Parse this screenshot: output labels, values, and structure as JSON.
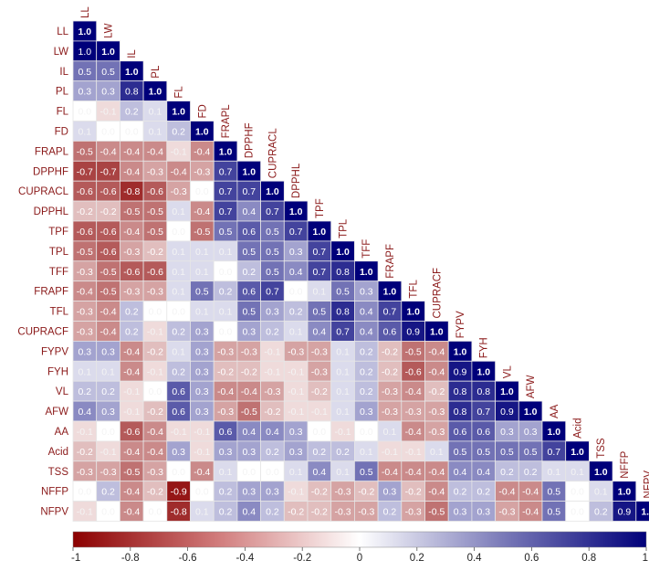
{
  "chart_data": {
    "type": "heatmap",
    "subtype": "lower-triangular correlation matrix",
    "variables": [
      "LL",
      "LW",
      "IL",
      "PL",
      "FL",
      "FD",
      "FRAPL",
      "DPPHF",
      "CUPRACL",
      "DPPHL",
      "TPF",
      "TPL",
      "TFF",
      "FRAPF",
      "TFL",
      "CUPRACF",
      "FYPV",
      "FYH",
      "VL",
      "AFW",
      "AA",
      "Acid",
      "TSS",
      "NFFP",
      "NFPV"
    ],
    "matrix": [
      [
        1.0
      ],
      [
        1.0,
        1.0
      ],
      [
        0.5,
        0.5,
        1.0
      ],
      [
        0.3,
        0.3,
        0.8,
        1.0
      ],
      [
        0.0,
        -0.1,
        0.2,
        0.1,
        1.0
      ],
      [
        0.1,
        0.0,
        0.0,
        0.1,
        0.2,
        1.0
      ],
      [
        -0.5,
        -0.4,
        -0.4,
        -0.4,
        -0.1,
        -0.4,
        1.0
      ],
      [
        -0.7,
        -0.7,
        -0.4,
        -0.3,
        -0.4,
        -0.3,
        0.7,
        1.0
      ],
      [
        -0.6,
        -0.6,
        -0.8,
        -0.6,
        -0.3,
        0.0,
        0.7,
        0.7,
        1.0
      ],
      [
        -0.2,
        -0.2,
        -0.5,
        -0.5,
        0.1,
        -0.4,
        0.7,
        0.4,
        0.7,
        1.0
      ],
      [
        -0.6,
        -0.6,
        -0.4,
        -0.5,
        0.0,
        -0.5,
        0.5,
        0.6,
        0.5,
        0.7,
        1.0
      ],
      [
        -0.5,
        -0.6,
        -0.3,
        -0.2,
        0.1,
        0.1,
        0.1,
        0.5,
        0.5,
        0.3,
        0.7,
        1.0
      ],
      [
        -0.3,
        -0.5,
        -0.6,
        -0.6,
        0.1,
        0.1,
        0.0,
        0.2,
        0.5,
        0.4,
        0.7,
        0.8,
        1.0
      ],
      [
        -0.4,
        -0.5,
        -0.3,
        -0.3,
        0.1,
        0.5,
        0.2,
        0.6,
        0.7,
        0.0,
        0.1,
        0.5,
        0.3,
        1.0
      ],
      [
        -0.3,
        -0.4,
        0.2,
        0.0,
        0.0,
        0.1,
        0.1,
        0.5,
        0.3,
        0.2,
        0.5,
        0.8,
        0.4,
        0.7,
        1.0
      ],
      [
        -0.3,
        -0.4,
        0.2,
        -0.1,
        0.2,
        0.3,
        0.0,
        0.3,
        0.2,
        0.1,
        0.4,
        0.7,
        0.4,
        0.6,
        0.9,
        1.0
      ],
      [
        0.3,
        0.3,
        -0.4,
        -0.2,
        0.1,
        0.3,
        -0.3,
        -0.3,
        -0.1,
        -0.3,
        -0.3,
        0.1,
        0.2,
        -0.2,
        -0.5,
        -0.4,
        1.0
      ],
      [
        0.1,
        0.1,
        -0.4,
        -0.1,
        0.2,
        0.3,
        -0.2,
        -0.2,
        -0.1,
        -0.1,
        -0.3,
        0.1,
        0.2,
        -0.2,
        -0.6,
        -0.4,
        0.9,
        1.0
      ],
      [
        0.2,
        0.2,
        -0.1,
        0.0,
        0.6,
        0.3,
        -0.4,
        -0.4,
        -0.3,
        -0.1,
        -0.2,
        0.1,
        0.2,
        -0.3,
        -0.4,
        -0.2,
        0.8,
        0.8,
        1.0
      ],
      [
        0.4,
        0.3,
        -0.1,
        -0.2,
        0.6,
        0.3,
        -0.3,
        -0.5,
        -0.2,
        -0.1,
        -0.1,
        0.1,
        0.3,
        -0.3,
        -0.3,
        -0.3,
        0.8,
        0.7,
        0.9,
        1.0
      ],
      [
        -0.1,
        0.0,
        -0.6,
        -0.4,
        -0.1,
        -0.1,
        0.6,
        0.4,
        0.4,
        0.3,
        0.0,
        -0.1,
        0.0,
        0.1,
        -0.4,
        -0.3,
        0.6,
        0.6,
        0.3,
        0.3,
        1.0
      ],
      [
        -0.2,
        -0.1,
        -0.4,
        -0.4,
        0.3,
        -0.1,
        0.3,
        0.3,
        0.2,
        0.3,
        0.2,
        0.2,
        0.1,
        -0.1,
        -0.1,
        0.1,
        0.5,
        0.5,
        0.5,
        0.5,
        0.7,
        1.0
      ],
      [
        -0.3,
        -0.3,
        -0.5,
        -0.3,
        0.0,
        -0.4,
        0.1,
        0.0,
        0.0,
        0.1,
        0.4,
        0.1,
        0.5,
        -0.4,
        -0.4,
        -0.4,
        0.4,
        0.4,
        0.2,
        0.2,
        0.1,
        0.1,
        1.0
      ],
      [
        0.0,
        0.2,
        -0.4,
        -0.2,
        -0.9,
        0.0,
        0.2,
        0.3,
        0.3,
        -0.1,
        -0.2,
        -0.3,
        -0.2,
        0.3,
        -0.2,
        -0.4,
        0.2,
        0.2,
        -0.4,
        -0.4,
        0.5,
        0.0,
        0.1,
        1.0
      ],
      [
        -0.1,
        0.0,
        -0.4,
        0.0,
        -0.8,
        0.1,
        0.2,
        0.4,
        0.2,
        -0.2,
        -0.2,
        -0.3,
        -0.3,
        0.2,
        -0.3,
        -0.5,
        0.3,
        0.3,
        -0.3,
        -0.4,
        0.5,
        0.0,
        0.2,
        0.9,
        1.0
      ]
    ],
    "color_scale": {
      "min": -1,
      "max": 1,
      "ticks": [
        -1,
        -0.8,
        -0.6,
        -0.4,
        -0.2,
        0,
        0.2,
        0.4,
        0.6,
        0.8,
        1
      ],
      "tick_labels": [
        "-1",
        "-0.8",
        "-0.6",
        "-0.4",
        "-0.2",
        "0",
        "0.2",
        "0.4",
        "0.6",
        "0.8",
        "1"
      ],
      "low_color": "#8b0000",
      "mid_color": "#ffffff",
      "high_color": "#00007a"
    },
    "label_color": "#8b1a1a",
    "legend_position": "bottom"
  }
}
